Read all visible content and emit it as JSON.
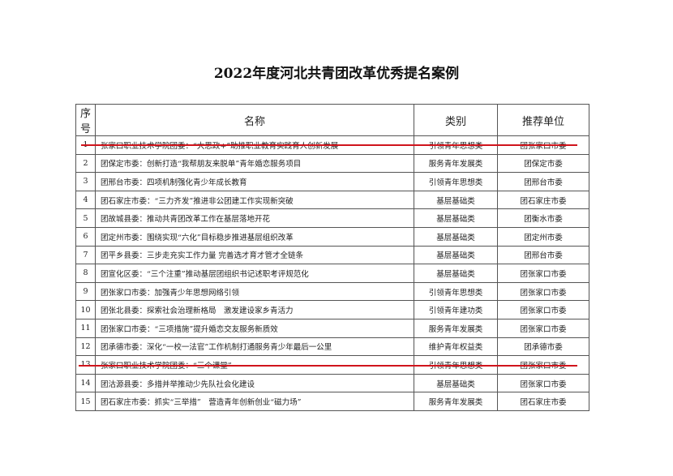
{
  "title": "2022年度河北共青团改革优秀提名案例",
  "headers": {
    "no": "序号",
    "name": "名称",
    "category": "类别",
    "unit": "推荐单位"
  },
  "rows": [
    {
      "no": "1",
      "name": "张家口职业技术学院团委：“大思政+”助推职业教育实践育人创新发展",
      "category": "引领青年思想类",
      "unit": "团张家口市委",
      "underlined": true
    },
    {
      "no": "2",
      "name": "团保定市委：创新打造“我帮朋友来脱单”青年婚恋服务项目",
      "category": "服务青年发展类",
      "unit": "团保定市委"
    },
    {
      "no": "3",
      "name": "团邢台市委：四项机制强化青少年成长教育",
      "category": "引领青年思想类",
      "unit": "团邢台市委"
    },
    {
      "no": "4",
      "name": "团石家庄市委：“三力齐发”推进非公团建工作实现新突破",
      "category": "基层基础类",
      "unit": "团石家庄市委"
    },
    {
      "no": "5",
      "name": "团故城县委：推动共青团改革工作在基层落地开花",
      "category": "基层基础类",
      "unit": "团衡水市委"
    },
    {
      "no": "6",
      "name": "团定州市委：围绕实现“六化”目标稳步推进基层组织改革",
      "category": "基层基础类",
      "unit": "团定州市委"
    },
    {
      "no": "7",
      "name": "团平乡县委：三步走充实工作力量 完善选才育才管才全链条",
      "category": "基层基础类",
      "unit": "团邢台市委"
    },
    {
      "no": "8",
      "name": "团宣化区委：“三个注重”推动基层团组织书记述职考评规范化",
      "category": "基层基础类",
      "unit": "团张家口市委"
    },
    {
      "no": "9",
      "name": "团张家口市委：加强青少年思想网络引领",
      "category": "引领青年思想类",
      "unit": "团张家口市委"
    },
    {
      "no": "10",
      "name": "团张北县委：探索社会治理新格局　激发建设家乡青活力",
      "category": "引领青年建功类",
      "unit": "团张家口市委"
    },
    {
      "no": "11",
      "name": "团张家口市委：“三项措施”提升婚恋交友服务新质效",
      "category": "服务青年发展类",
      "unit": "团张家口市委"
    },
    {
      "no": "12",
      "name": "团承德市委：深化“一校一法官”工作机制打通服务青少年最后一公里",
      "category": "维护青年权益类",
      "unit": "团承德市委"
    },
    {
      "no": "13",
      "name": "张家口职业技术学院团委：“三个课堂”",
      "category": "引领青年思想类",
      "unit": "团张家口市委",
      "underlined": true
    },
    {
      "no": "14",
      "name": "团沽源县委：多措并举推动少先队社会化建设",
      "category": "基层基础类",
      "unit": "团张家口市委"
    },
    {
      "no": "15",
      "name": "团石家庄市委：抓实“三举措”　营造青年创新创业“磁力场”",
      "category": "服务青年发展类",
      "unit": "团石家庄市委"
    }
  ],
  "annotation_color": "#d0141c"
}
